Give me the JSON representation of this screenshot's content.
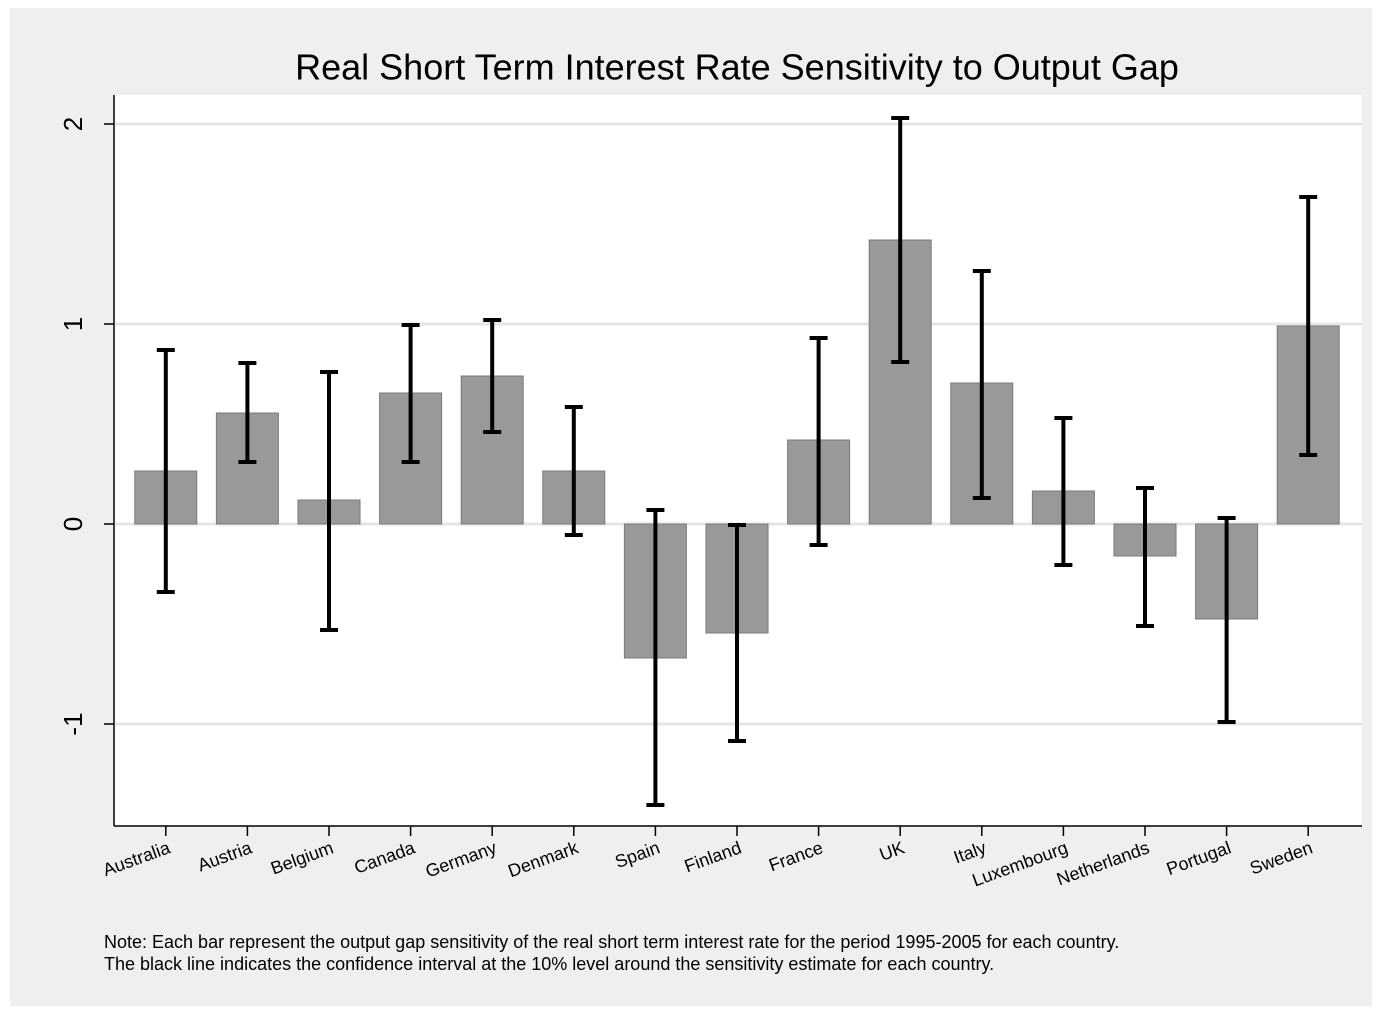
{
  "chart_data": {
    "type": "bar",
    "title": "Real Short Term Interest Rate Sensitivity to Output Gap",
    "categories": [
      "Australia",
      "Austria",
      "Belgium",
      "Canada",
      "Germany",
      "Denmark",
      "Spain",
      "Finland",
      "France",
      "UK",
      "Italy",
      "Luxembourg",
      "Netherlands",
      "Portugal",
      "Sweden"
    ],
    "values": [
      0.265,
      0.555,
      0.12,
      0.655,
      0.74,
      0.265,
      -0.67,
      -0.545,
      0.42,
      1.42,
      0.705,
      0.165,
      -0.16,
      -0.475,
      0.99
    ],
    "ci_high": [
      0.87,
      0.805,
      0.76,
      0.995,
      1.02,
      0.585,
      0.07,
      -0.005,
      0.93,
      2.03,
      1.265,
      0.53,
      0.18,
      0.03,
      1.635
    ],
    "ci_low": [
      -0.34,
      0.31,
      -0.53,
      0.31,
      0.46,
      -0.055,
      -1.405,
      -1.085,
      -0.105,
      0.81,
      0.13,
      -0.205,
      -0.51,
      -0.99,
      0.345
    ],
    "color": "#999999",
    "error_color": "#000000",
    "ylim": [
      -1.51,
      2.145
    ],
    "yticks": [
      -1,
      0,
      1,
      2
    ],
    "grid": true,
    "note": [
      "Note: Each bar represent the output gap sensitivity of the real short term interest rate for the period 1995-2005 for each country.",
      "The black line indicates the confidence interval at the 10% level around the sensitivity estimate for each country."
    ]
  }
}
